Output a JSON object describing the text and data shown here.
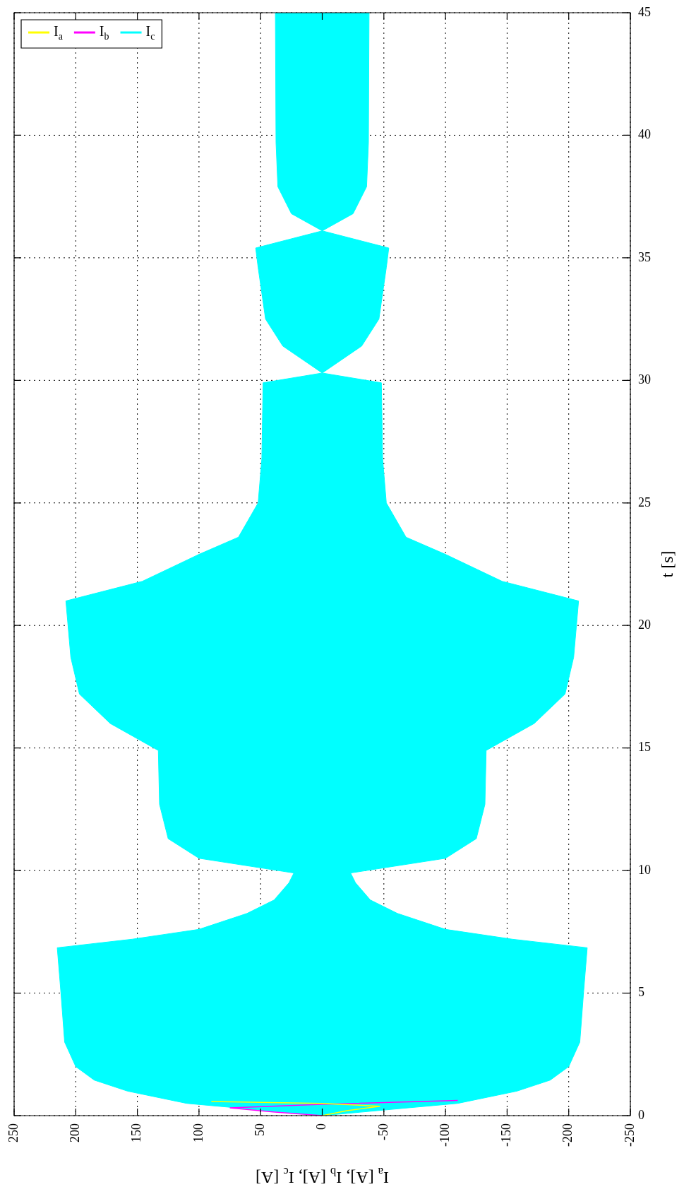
{
  "chart_data": {
    "type": "line",
    "xlabel": "I$_{a}$ [A], I$_{b}$ [A], I$_{c}$ [A]",
    "ylabel": "t [s]",
    "xlim": [
      250,
      -250
    ],
    "xticks": [
      250,
      200,
      150,
      100,
      50,
      0,
      -50,
      -100,
      -150,
      -200,
      -250
    ],
    "ylim": [
      0,
      45
    ],
    "yticks": [
      0,
      5,
      10,
      15,
      20,
      25,
      30,
      35,
      40,
      45
    ],
    "grid": true,
    "legend": "top left",
    "marker": "none",
    "line_style": "solid",
    "series": [
      {
        "name": "I$_{a}$",
        "color": "#ffff00",
        "x": [
          0,
          -20,
          -47,
          0,
          90
        ],
        "values": [
          0,
          0.2,
          0.38,
          0.5,
          0.58
        ]
      },
      {
        "name": "I$_{b}$",
        "color": "#ff00ff",
        "x": [
          0,
          40,
          75,
          0,
          -110
        ],
        "values": [
          0,
          0.15,
          0.32,
          0.46,
          0.62
        ]
      },
      {
        "name": "I$_{c}$",
        "color": "#00ffff",
        "type": "area",
        "x": [
          0,
          -110,
          -158,
          -185,
          -200,
          -209,
          -212,
          -215,
          -154,
          -100,
          -61,
          -39,
          -27,
          -23,
          -100,
          -125,
          -132,
          -133,
          -172,
          -197,
          -204,
          -208,
          -146,
          -100,
          -68,
          -52,
          -49,
          -48,
          0,
          -32,
          -46,
          -52,
          -54,
          0,
          -25,
          -36,
          -37.5,
          -38,
          38,
          37.5,
          36,
          25,
          0,
          54,
          52,
          46,
          32,
          0,
          48,
          49,
          52,
          68,
          100,
          146,
          208,
          204,
          197,
          172,
          133,
          132,
          125,
          100,
          23,
          27,
          39,
          61,
          100,
          154,
          215,
          212,
          209,
          200,
          185,
          158,
          110,
          0
        ],
        "values": [
          0,
          0.5,
          1,
          1.45,
          2,
          3,
          5,
          6.85,
          7.2,
          7.6,
          8.25,
          8.8,
          9.5,
          9.9,
          10.5,
          11.3,
          12.7,
          14.9,
          16,
          17.2,
          18.7,
          21,
          21.8,
          22.9,
          23.6,
          25,
          26.8,
          29.9,
          30.3,
          31.4,
          32.5,
          34.6,
          35.4,
          36.1,
          36.8,
          37.9,
          39.7,
          45,
          45,
          39.7,
          37.9,
          36.8,
          36.1,
          35.4,
          34.6,
          32.5,
          31.4,
          30.3,
          29.9,
          26.8,
          25,
          23.6,
          22.9,
          21.8,
          21,
          18.7,
          17.2,
          16,
          14.9,
          12.7,
          11.3,
          10.5,
          9.9,
          9.5,
          8.8,
          8.25,
          7.6,
          7.2,
          6.85,
          5,
          3,
          2,
          1.45,
          1,
          0.5,
          0
        ]
      }
    ]
  }
}
